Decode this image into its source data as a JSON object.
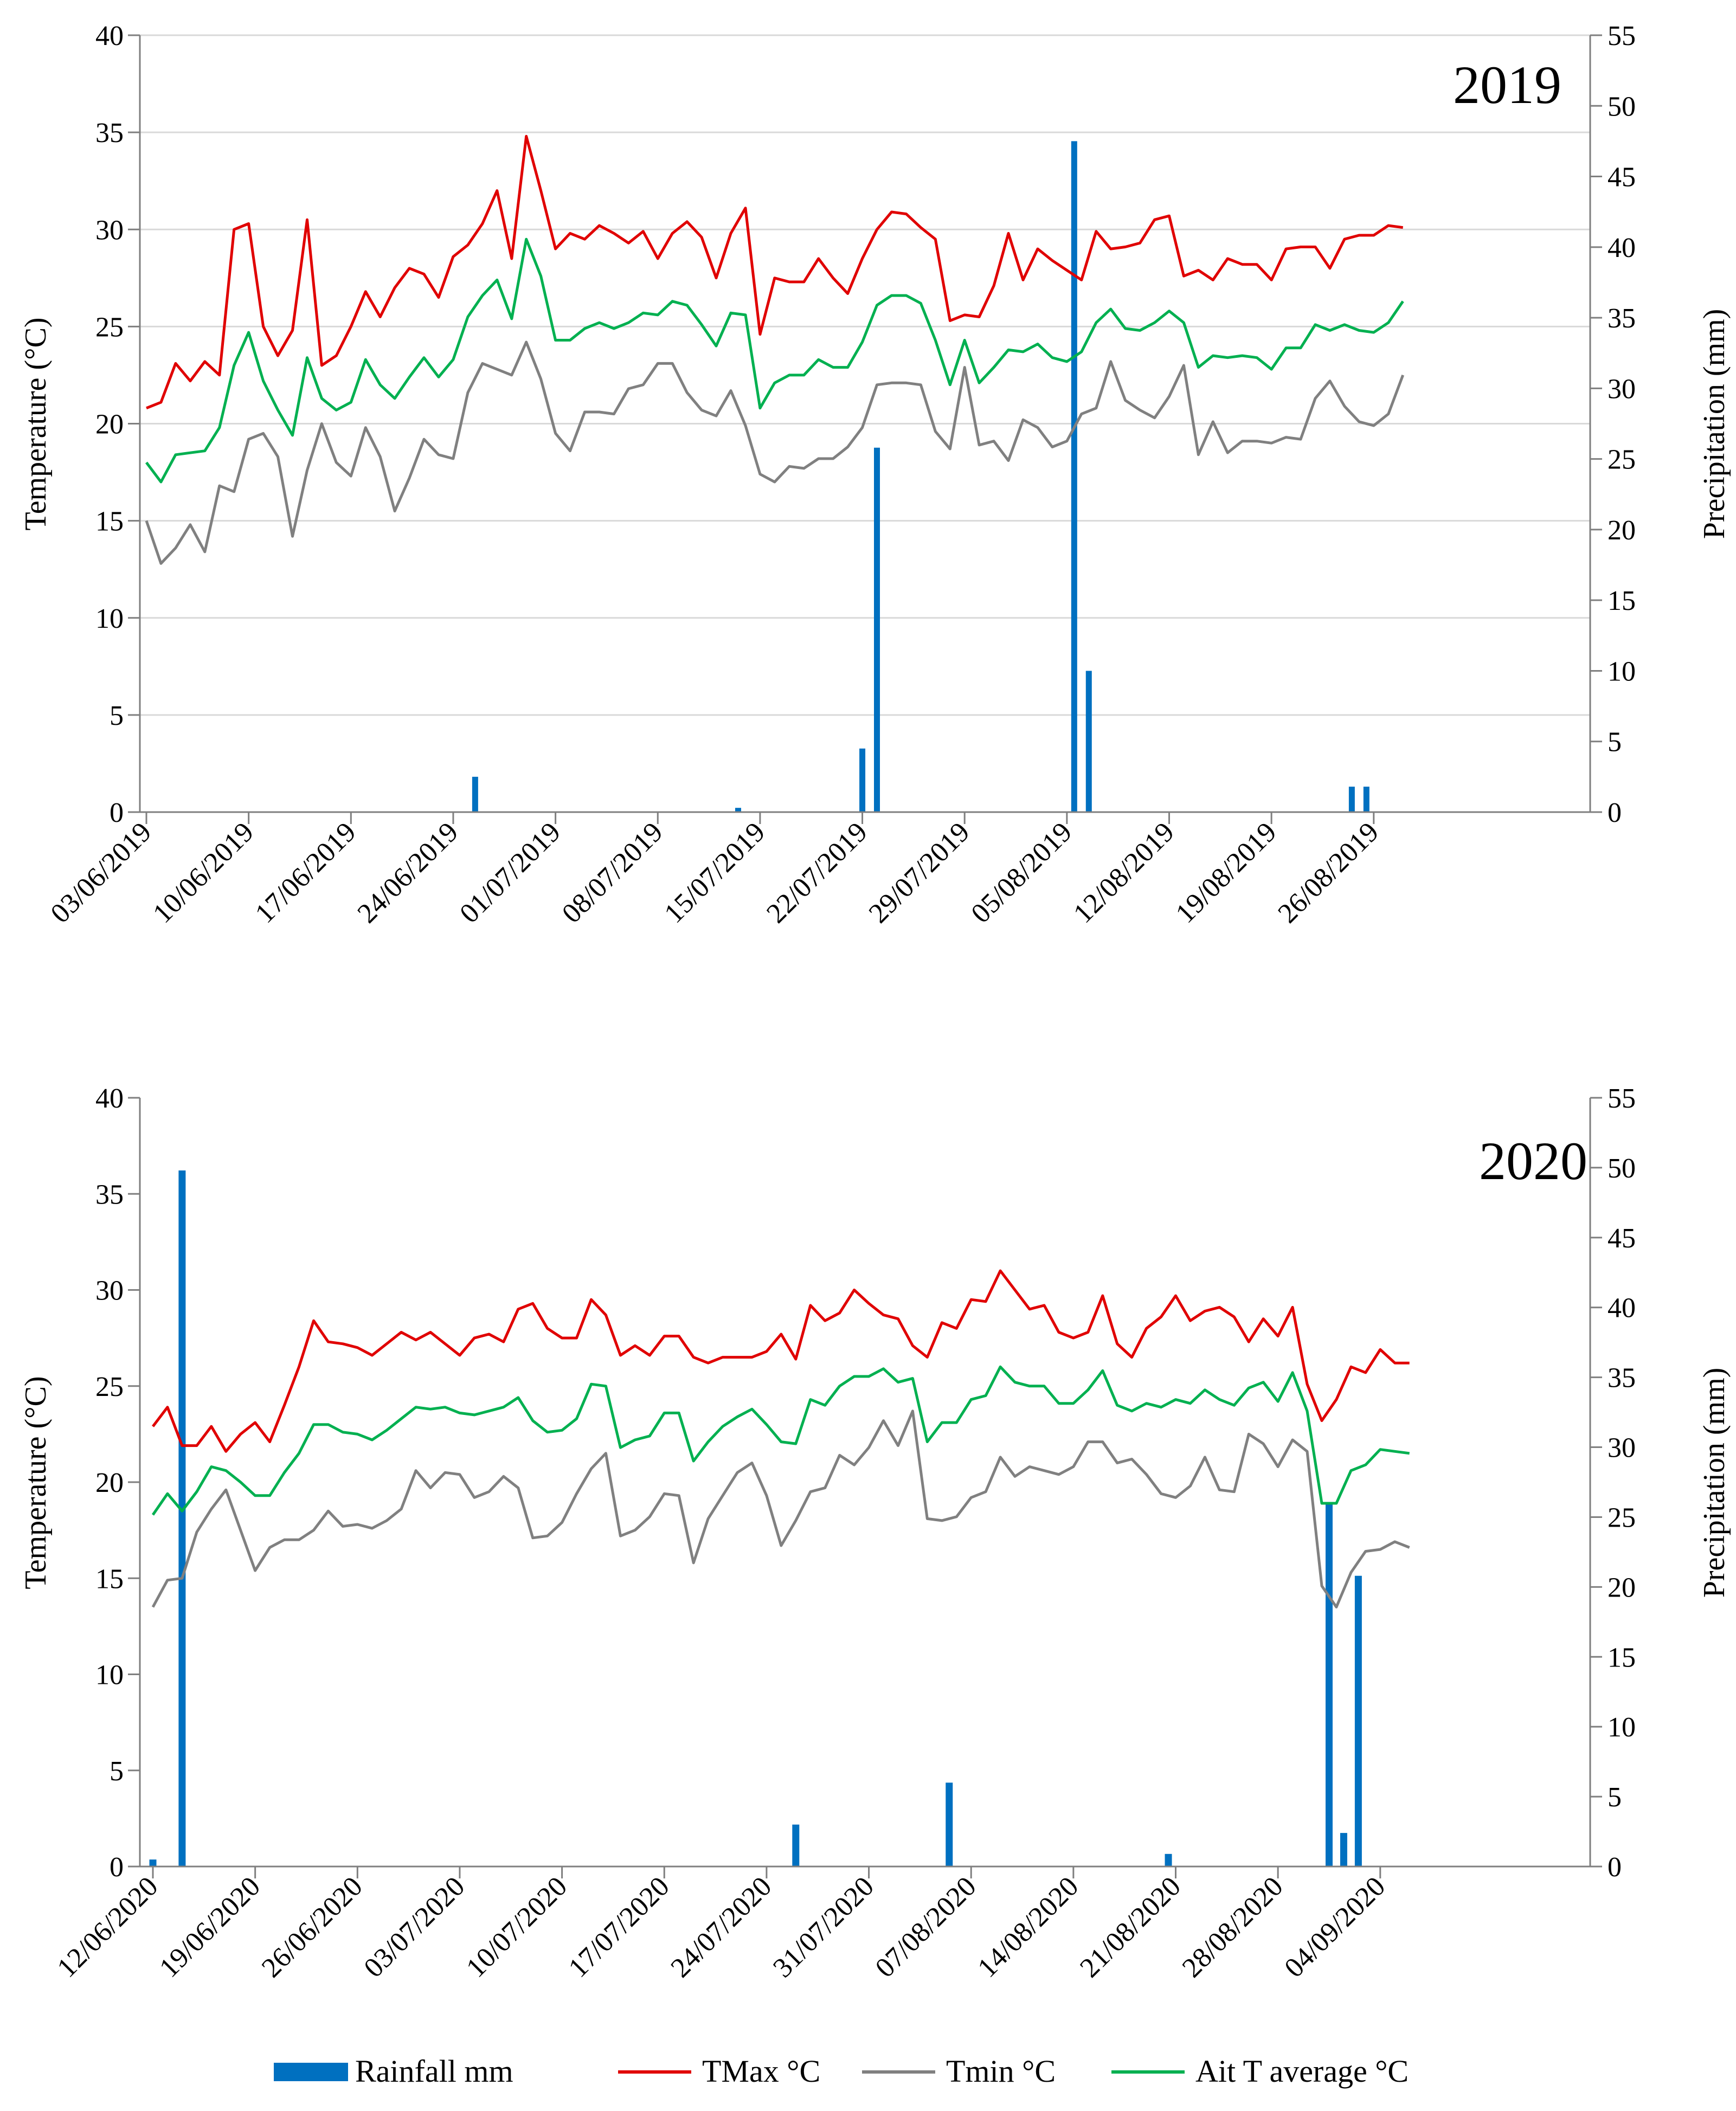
{
  "colors": {
    "rainfall": "#0070c0",
    "tmax": "#e00000",
    "tmin": "#808080",
    "tavg": "#00b050",
    "gridline": "#d9d9d9",
    "axis": "#7f7f7f"
  },
  "legend": {
    "rainfall": "Rainfall mm",
    "tmax": "TMax °C",
    "tmin": "Tmin °C",
    "tavg": "Ait T average °C"
  },
  "chart_data": [
    {
      "type": "bar+line",
      "title": "2019",
      "ylabel_left": "Temperature (°C)",
      "ylabel_right": "Precipitation (mm)",
      "ylim_left": [
        0,
        40
      ],
      "ylim_right": [
        0,
        55
      ],
      "yticks_left": [
        "0",
        "5",
        "10",
        "15",
        "20",
        "25",
        "30",
        "35",
        "40"
      ],
      "yticks_right": [
        "0",
        "5",
        "10",
        "15",
        "20",
        "25",
        "30",
        "35",
        "40",
        "45",
        "50",
        "55"
      ],
      "n_days": 90,
      "gridlines": true,
      "xtick_labels": [
        "03/06/2019",
        "10/06/2019",
        "17/06/2019",
        "24/06/2019",
        "01/07/2019",
        "08/07/2019",
        "15/07/2019",
        "22/07/2019",
        "29/07/2019",
        "05/08/2019",
        "12/08/2019",
        "19/08/2019",
        "26/08/2019"
      ],
      "xtick_day_index": [
        0,
        7,
        14,
        21,
        28,
        35,
        42,
        49,
        56,
        63,
        70,
        77,
        84
      ],
      "series": [
        {
          "name": "TMax °C",
          "key": "tmax",
          "values": [
            20.8,
            21.1,
            23.1,
            22.2,
            23.2,
            22.5,
            30.0,
            30.3,
            25.0,
            23.5,
            24.8,
            30.5,
            23.0,
            23.5,
            25.0,
            26.8,
            25.5,
            27.0,
            28.0,
            27.7,
            26.5,
            28.6,
            29.2,
            30.3,
            32.0,
            28.5,
            34.8,
            32.0,
            29.0,
            29.8,
            29.5,
            30.2,
            29.8,
            29.3,
            29.9,
            28.5,
            29.8,
            30.4,
            29.6,
            27.5,
            29.8,
            31.1,
            24.6,
            27.5,
            27.3,
            27.3,
            28.5,
            27.5,
            26.7,
            28.5,
            30.0,
            30.9,
            30.8,
            30.1,
            29.5,
            25.3,
            25.6,
            25.5,
            27.1,
            29.8,
            27.4,
            29.0,
            28.4,
            27.9,
            27.4,
            29.9,
            29.0,
            29.1,
            29.3,
            30.5,
            30.7,
            27.6,
            27.9,
            27.4,
            28.5,
            28.2,
            28.2,
            27.4,
            29.0,
            29.1,
            29.1,
            28.0,
            29.5,
            29.7,
            29.7,
            30.2,
            30.1
          ]
        },
        {
          "name": "Tmin °C",
          "key": "tmin",
          "values": [
            15.0,
            12.8,
            13.6,
            14.8,
            13.4,
            16.8,
            16.5,
            19.2,
            19.5,
            18.3,
            14.2,
            17.6,
            20.0,
            18.0,
            17.3,
            19.8,
            18.3,
            15.5,
            17.2,
            19.2,
            18.4,
            18.2,
            21.6,
            23.1,
            22.8,
            22.5,
            24.2,
            22.3,
            19.5,
            18.6,
            20.6,
            20.6,
            20.5,
            21.8,
            22.0,
            23.1,
            23.1,
            21.6,
            20.7,
            20.4,
            21.7,
            19.9,
            17.4,
            17.0,
            17.8,
            17.7,
            18.2,
            18.2,
            18.8,
            19.8,
            22.0,
            22.1,
            22.1,
            22.0,
            19.6,
            18.7,
            22.9,
            18.9,
            19.1,
            18.1,
            20.2,
            19.8,
            18.8,
            19.1,
            20.5,
            20.8,
            23.2,
            21.2,
            20.7,
            20.3,
            21.4,
            23.0,
            18.4,
            20.1,
            18.5,
            19.1,
            19.1,
            19.0,
            19.3,
            19.2,
            21.3,
            22.2,
            20.9,
            20.1,
            19.9,
            20.5,
            22.5
          ]
        },
        {
          "name": "Ait T average °C",
          "key": "tavg",
          "values": [
            18.0,
            17.0,
            18.4,
            18.5,
            18.6,
            19.8,
            23.0,
            24.7,
            22.2,
            20.7,
            19.4,
            23.4,
            21.3,
            20.7,
            21.1,
            23.3,
            22.0,
            21.3,
            22.4,
            23.4,
            22.4,
            23.3,
            25.5,
            26.6,
            27.4,
            25.4,
            29.5,
            27.6,
            24.3,
            24.3,
            24.9,
            25.2,
            24.9,
            25.2,
            25.7,
            25.6,
            26.3,
            26.1,
            25.1,
            24.0,
            25.7,
            25.6,
            20.8,
            22.1,
            22.5,
            22.5,
            23.3,
            22.9,
            22.9,
            24.2,
            26.1,
            26.6,
            26.6,
            26.2,
            24.3,
            22.0,
            24.3,
            22.1,
            22.9,
            23.8,
            23.7,
            24.1,
            23.4,
            23.2,
            23.7,
            25.2,
            25.9,
            24.9,
            24.8,
            25.2,
            25.8,
            25.2,
            22.9,
            23.5,
            23.4,
            23.5,
            23.4,
            22.8,
            23.9,
            23.9,
            25.1,
            24.8,
            25.1,
            24.8,
            24.7,
            25.2,
            26.3
          ]
        },
        {
          "name": "Rainfall mm",
          "key": "rainfall",
          "type": "bar",
          "day_index": [
            22.5,
            40.5,
            49,
            50,
            63.5,
            64.5,
            82.5,
            83.5
          ],
          "values": [
            2.5,
            0.3,
            4.5,
            25.8,
            47.5,
            10.0,
            1.8,
            1.8
          ]
        }
      ]
    },
    {
      "type": "bar+line",
      "title": "2020",
      "ylabel_left": "Temperature (°C)",
      "ylabel_right": "Precipitation (mm)",
      "ylim_left": [
        0,
        40
      ],
      "ylim_right": [
        0,
        55
      ],
      "yticks_left": [
        "0",
        "5",
        "10",
        "15",
        "20",
        "25",
        "30",
        "35",
        "40"
      ],
      "yticks_right": [
        "0",
        "5",
        "10",
        "15",
        "20",
        "25",
        "30",
        "35",
        "40",
        "45",
        "50",
        "55"
      ],
      "n_days": 88,
      "gridlines": false,
      "xtick_labels": [
        "12/06/2020",
        "19/06/2020",
        "26/06/2020",
        "03/07/2020",
        "10/07/2020",
        "17/07/2020",
        "24/07/2020",
        "31/07/2020",
        "07/08/2020",
        "14/08/2020",
        "21/08/2020",
        "28/08/2020",
        "04/09/2020"
      ],
      "xtick_day_index": [
        0,
        7,
        14,
        21,
        28,
        35,
        42,
        49,
        56,
        63,
        70,
        77,
        84
      ],
      "series": [
        {
          "name": "TMax °C",
          "key": "tmax",
          "values": [
            22.9,
            23.9,
            21.9,
            21.9,
            22.9,
            21.6,
            22.5,
            23.1,
            22.1,
            24.0,
            26.0,
            28.4,
            27.3,
            27.2,
            27.0,
            26.6,
            27.2,
            27.8,
            27.4,
            27.8,
            27.2,
            26.6,
            27.5,
            27.7,
            27.3,
            29.0,
            29.3,
            28.0,
            27.5,
            27.5,
            29.5,
            28.7,
            26.6,
            27.1,
            26.6,
            27.6,
            27.6,
            26.5,
            26.2,
            26.5,
            26.5,
            26.5,
            26.8,
            27.7,
            26.4,
            29.2,
            28.4,
            28.8,
            30.0,
            29.3,
            28.7,
            28.5,
            27.1,
            26.5,
            28.3,
            28.0,
            29.5,
            29.4,
            31.0,
            30.0,
            29.0,
            29.2,
            27.8,
            27.5,
            27.8,
            29.7,
            27.2,
            26.5,
            28.0,
            28.6,
            29.7,
            28.4,
            28.9,
            29.1,
            28.6,
            27.3,
            28.5,
            27.6,
            29.1,
            25.1,
            23.2,
            24.3,
            26.0,
            25.7,
            26.9,
            26.2,
            26.2
          ]
        },
        {
          "name": "Tmin °C",
          "key": "tmin",
          "values": [
            13.5,
            14.9,
            15.0,
            17.4,
            18.6,
            19.6,
            17.5,
            15.4,
            16.6,
            17.0,
            17.0,
            17.5,
            18.5,
            17.7,
            17.8,
            17.6,
            18.0,
            18.6,
            20.6,
            19.7,
            20.5,
            20.4,
            19.2,
            19.5,
            20.3,
            19.7,
            17.1,
            17.2,
            17.9,
            19.4,
            20.7,
            21.5,
            17.2,
            17.5,
            18.2,
            19.4,
            19.3,
            15.8,
            18.1,
            19.3,
            20.5,
            21.0,
            19.3,
            16.7,
            18.0,
            19.5,
            19.7,
            21.4,
            20.9,
            21.8,
            23.2,
            21.9,
            23.7,
            18.1,
            18.0,
            18.2,
            19.2,
            19.5,
            21.3,
            20.3,
            20.8,
            20.6,
            20.4,
            20.8,
            22.1,
            22.1,
            21.0,
            21.2,
            20.4,
            19.4,
            19.2,
            19.8,
            21.3,
            19.6,
            19.5,
            22.5,
            22.0,
            20.8,
            22.2,
            21.6,
            14.6,
            13.5,
            15.3,
            16.4,
            16.5,
            16.9,
            16.6
          ]
        },
        {
          "name": "Ait T average °C",
          "key": "tavg",
          "values": [
            18.3,
            19.4,
            18.5,
            19.5,
            20.8,
            20.6,
            20.0,
            19.3,
            19.3,
            20.5,
            21.5,
            23.0,
            23.0,
            22.6,
            22.5,
            22.2,
            22.7,
            23.3,
            23.9,
            23.8,
            23.9,
            23.6,
            23.5,
            23.7,
            23.9,
            24.4,
            23.2,
            22.6,
            22.7,
            23.3,
            25.1,
            25.0,
            21.8,
            22.2,
            22.4,
            23.6,
            23.6,
            21.1,
            22.1,
            22.9,
            23.4,
            23.8,
            23.0,
            22.1,
            22.0,
            24.3,
            24.0,
            25.0,
            25.5,
            25.5,
            25.9,
            25.2,
            25.4,
            22.1,
            23.1,
            23.1,
            24.3,
            24.5,
            26.0,
            25.2,
            25.0,
            25.0,
            24.1,
            24.1,
            24.8,
            25.8,
            24.0,
            23.7,
            24.1,
            23.9,
            24.3,
            24.1,
            24.8,
            24.3,
            24.0,
            24.9,
            25.2,
            24.2,
            25.7,
            23.7,
            18.9,
            18.9,
            20.6,
            20.9,
            21.7,
            21.6,
            21.5
          ]
        },
        {
          "name": "Rainfall mm",
          "key": "rainfall",
          "type": "bar",
          "day_index": [
            0,
            2,
            44,
            54.5,
            69.5,
            80.5,
            81.5,
            82.5
          ],
          "values": [
            0.5,
            49.8,
            3.0,
            6.0,
            0.9,
            26.0,
            2.4,
            20.8
          ]
        }
      ]
    }
  ]
}
